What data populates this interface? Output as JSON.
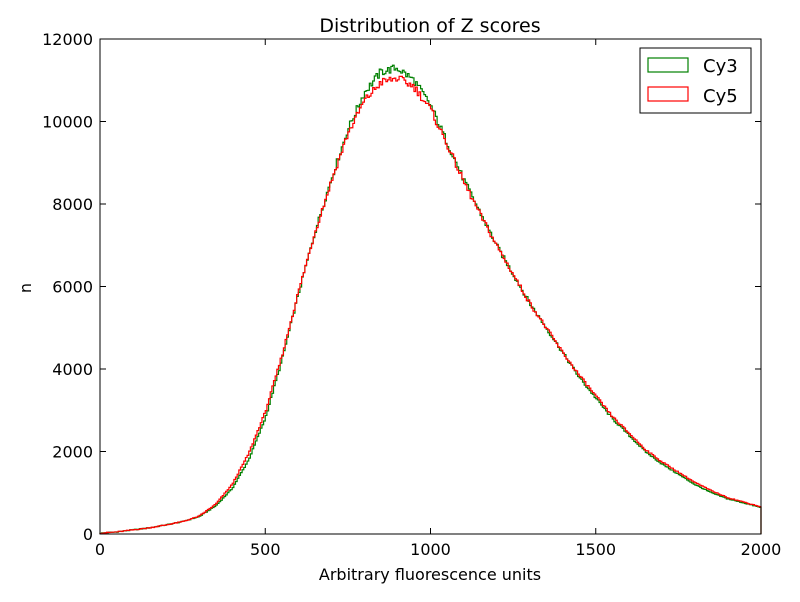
{
  "chart_data": {
    "type": "line",
    "title": "Distribution of Z scores",
    "xlabel": "Arbitrary fluorescence units",
    "ylabel": "n",
    "xlim": [
      0,
      2000
    ],
    "ylim": [
      0,
      12000
    ],
    "xticks": [
      "0",
      "500",
      "1000",
      "1500",
      "2000"
    ],
    "yticks": [
      "0",
      "2000",
      "4000",
      "6000",
      "8000",
      "10000",
      "12000"
    ],
    "grid": false,
    "legend_position": "top-right",
    "x": [
      0,
      50,
      100,
      150,
      200,
      250,
      300,
      350,
      400,
      450,
      500,
      550,
      600,
      650,
      700,
      750,
      800,
      850,
      900,
      950,
      1000,
      1050,
      1100,
      1150,
      1200,
      1250,
      1300,
      1350,
      1400,
      1450,
      1500,
      1550,
      1600,
      1650,
      1700,
      1750,
      1800,
      1850,
      1900,
      1950,
      2000
    ],
    "series": [
      {
        "name": "Cy3",
        "color": "#008000",
        "values": [
          20,
          50,
          100,
          150,
          220,
          300,
          420,
          680,
          1100,
          1800,
          2800,
          4200,
          5800,
          7300,
          8600,
          9800,
          10700,
          11200,
          11300,
          11000,
          10400,
          9500,
          8600,
          7800,
          7000,
          6300,
          5600,
          5000,
          4400,
          3800,
          3300,
          2800,
          2400,
          2000,
          1700,
          1450,
          1200,
          1000,
          850,
          750,
          640
        ]
      },
      {
        "name": "Cy5",
        "color": "#ff0000",
        "values": [
          20,
          50,
          100,
          150,
          220,
          300,
          430,
          720,
          1200,
          1950,
          2950,
          4300,
          5850,
          7300,
          8550,
          9700,
          10500,
          10950,
          11050,
          10850,
          10300,
          9450,
          8550,
          7750,
          7000,
          6300,
          5600,
          5000,
          4400,
          3850,
          3350,
          2850,
          2450,
          2050,
          1750,
          1500,
          1250,
          1050,
          880,
          770,
          660
        ]
      }
    ]
  }
}
